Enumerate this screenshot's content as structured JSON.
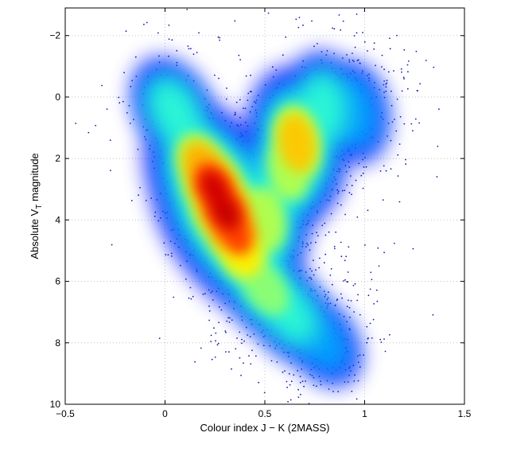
{
  "chart_data": {
    "type": "scatter",
    "subtype": "density-scatter (Hertzsprung-Russell colour-magnitude diagram)",
    "title": "",
    "xlabel": "Colour index J − K (2MASS)",
    "ylabel": {
      "prefix": "Absolute V",
      "subscript": "T",
      "suffix": " magnitude"
    },
    "xlim": [
      -0.5,
      1.5
    ],
    "ylim": [
      10,
      -2.9
    ],
    "y_inverted": true,
    "xticks": [
      {
        "value": -0.5,
        "label": "−0.5"
      },
      {
        "value": 0,
        "label": "0"
      },
      {
        "value": 0.5,
        "label": "0.5"
      },
      {
        "value": 1,
        "label": "1"
      },
      {
        "value": 1.5,
        "label": "1.5"
      }
    ],
    "yticks": [
      {
        "value": -2,
        "label": "−2"
      },
      {
        "value": 0,
        "label": "0"
      },
      {
        "value": 2,
        "label": "2"
      },
      {
        "value": 4,
        "label": "4"
      },
      {
        "value": 6,
        "label": "6"
      },
      {
        "value": 8,
        "label": "8"
      },
      {
        "value": 10,
        "label": "10"
      }
    ],
    "grid": true,
    "grid_style": "dotted",
    "colormap": "jet",
    "density_regions": [
      {
        "x": 0.3,
        "y": 3.7,
        "level": 1.0
      },
      {
        "x": 0.25,
        "y": 3.0,
        "level": 0.9
      },
      {
        "x": 0.34,
        "y": 4.3,
        "level": 0.85
      },
      {
        "x": 0.2,
        "y": 2.4,
        "level": 0.65
      },
      {
        "x": 0.38,
        "y": 5.0,
        "level": 0.55
      },
      {
        "x": 0.66,
        "y": 1.5,
        "level": 0.6
      },
      {
        "x": 0.62,
        "y": 2.3,
        "level": 0.45
      },
      {
        "x": 0.5,
        "y": 4.0,
        "level": 0.45
      },
      {
        "x": 0.5,
        "y": 6.2,
        "level": 0.4
      },
      {
        "x": 0.62,
        "y": 7.0,
        "level": 0.35
      },
      {
        "x": 0.05,
        "y": 0.5,
        "level": 0.35
      },
      {
        "x": 0.8,
        "y": 0.3,
        "level": 0.3
      },
      {
        "x": 0.95,
        "y": 0.5,
        "level": 0.25
      },
      {
        "x": 0.78,
        "y": 7.9,
        "level": 0.25
      }
    ]
  }
}
